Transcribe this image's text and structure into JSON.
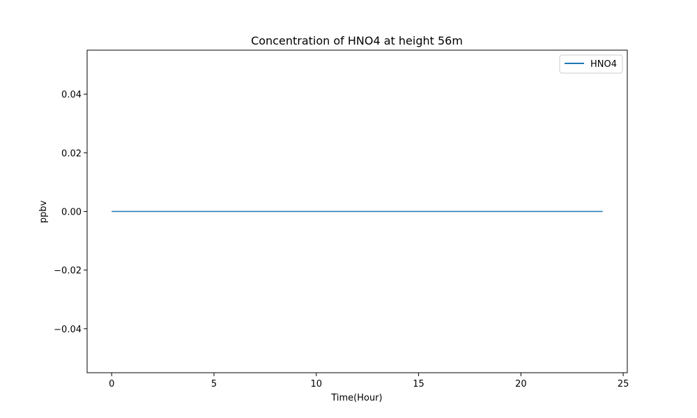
{
  "chart_data": {
    "type": "line",
    "title": "Concentration of HNO4 at height 56m",
    "xlabel": "Time(Hour)",
    "ylabel": "ppbv",
    "xlim": [
      -1.2,
      25.2
    ],
    "ylim": [
      -0.055,
      0.055
    ],
    "x_ticks": [
      0,
      5,
      10,
      15,
      20,
      25
    ],
    "x_tick_labels": [
      "0",
      "5",
      "10",
      "15",
      "20",
      "25"
    ],
    "y_ticks": [
      -0.04,
      -0.02,
      0.0,
      0.02,
      0.04
    ],
    "y_tick_labels": [
      "−0.04",
      "−0.02",
      "0.00",
      "0.02",
      "0.04"
    ],
    "grid": false,
    "legend_position": "top-right",
    "series": [
      {
        "name": "HNO4",
        "color": "#1f77b4",
        "x": [
          0,
          24
        ],
        "y": [
          0.0,
          0.0
        ]
      }
    ]
  }
}
